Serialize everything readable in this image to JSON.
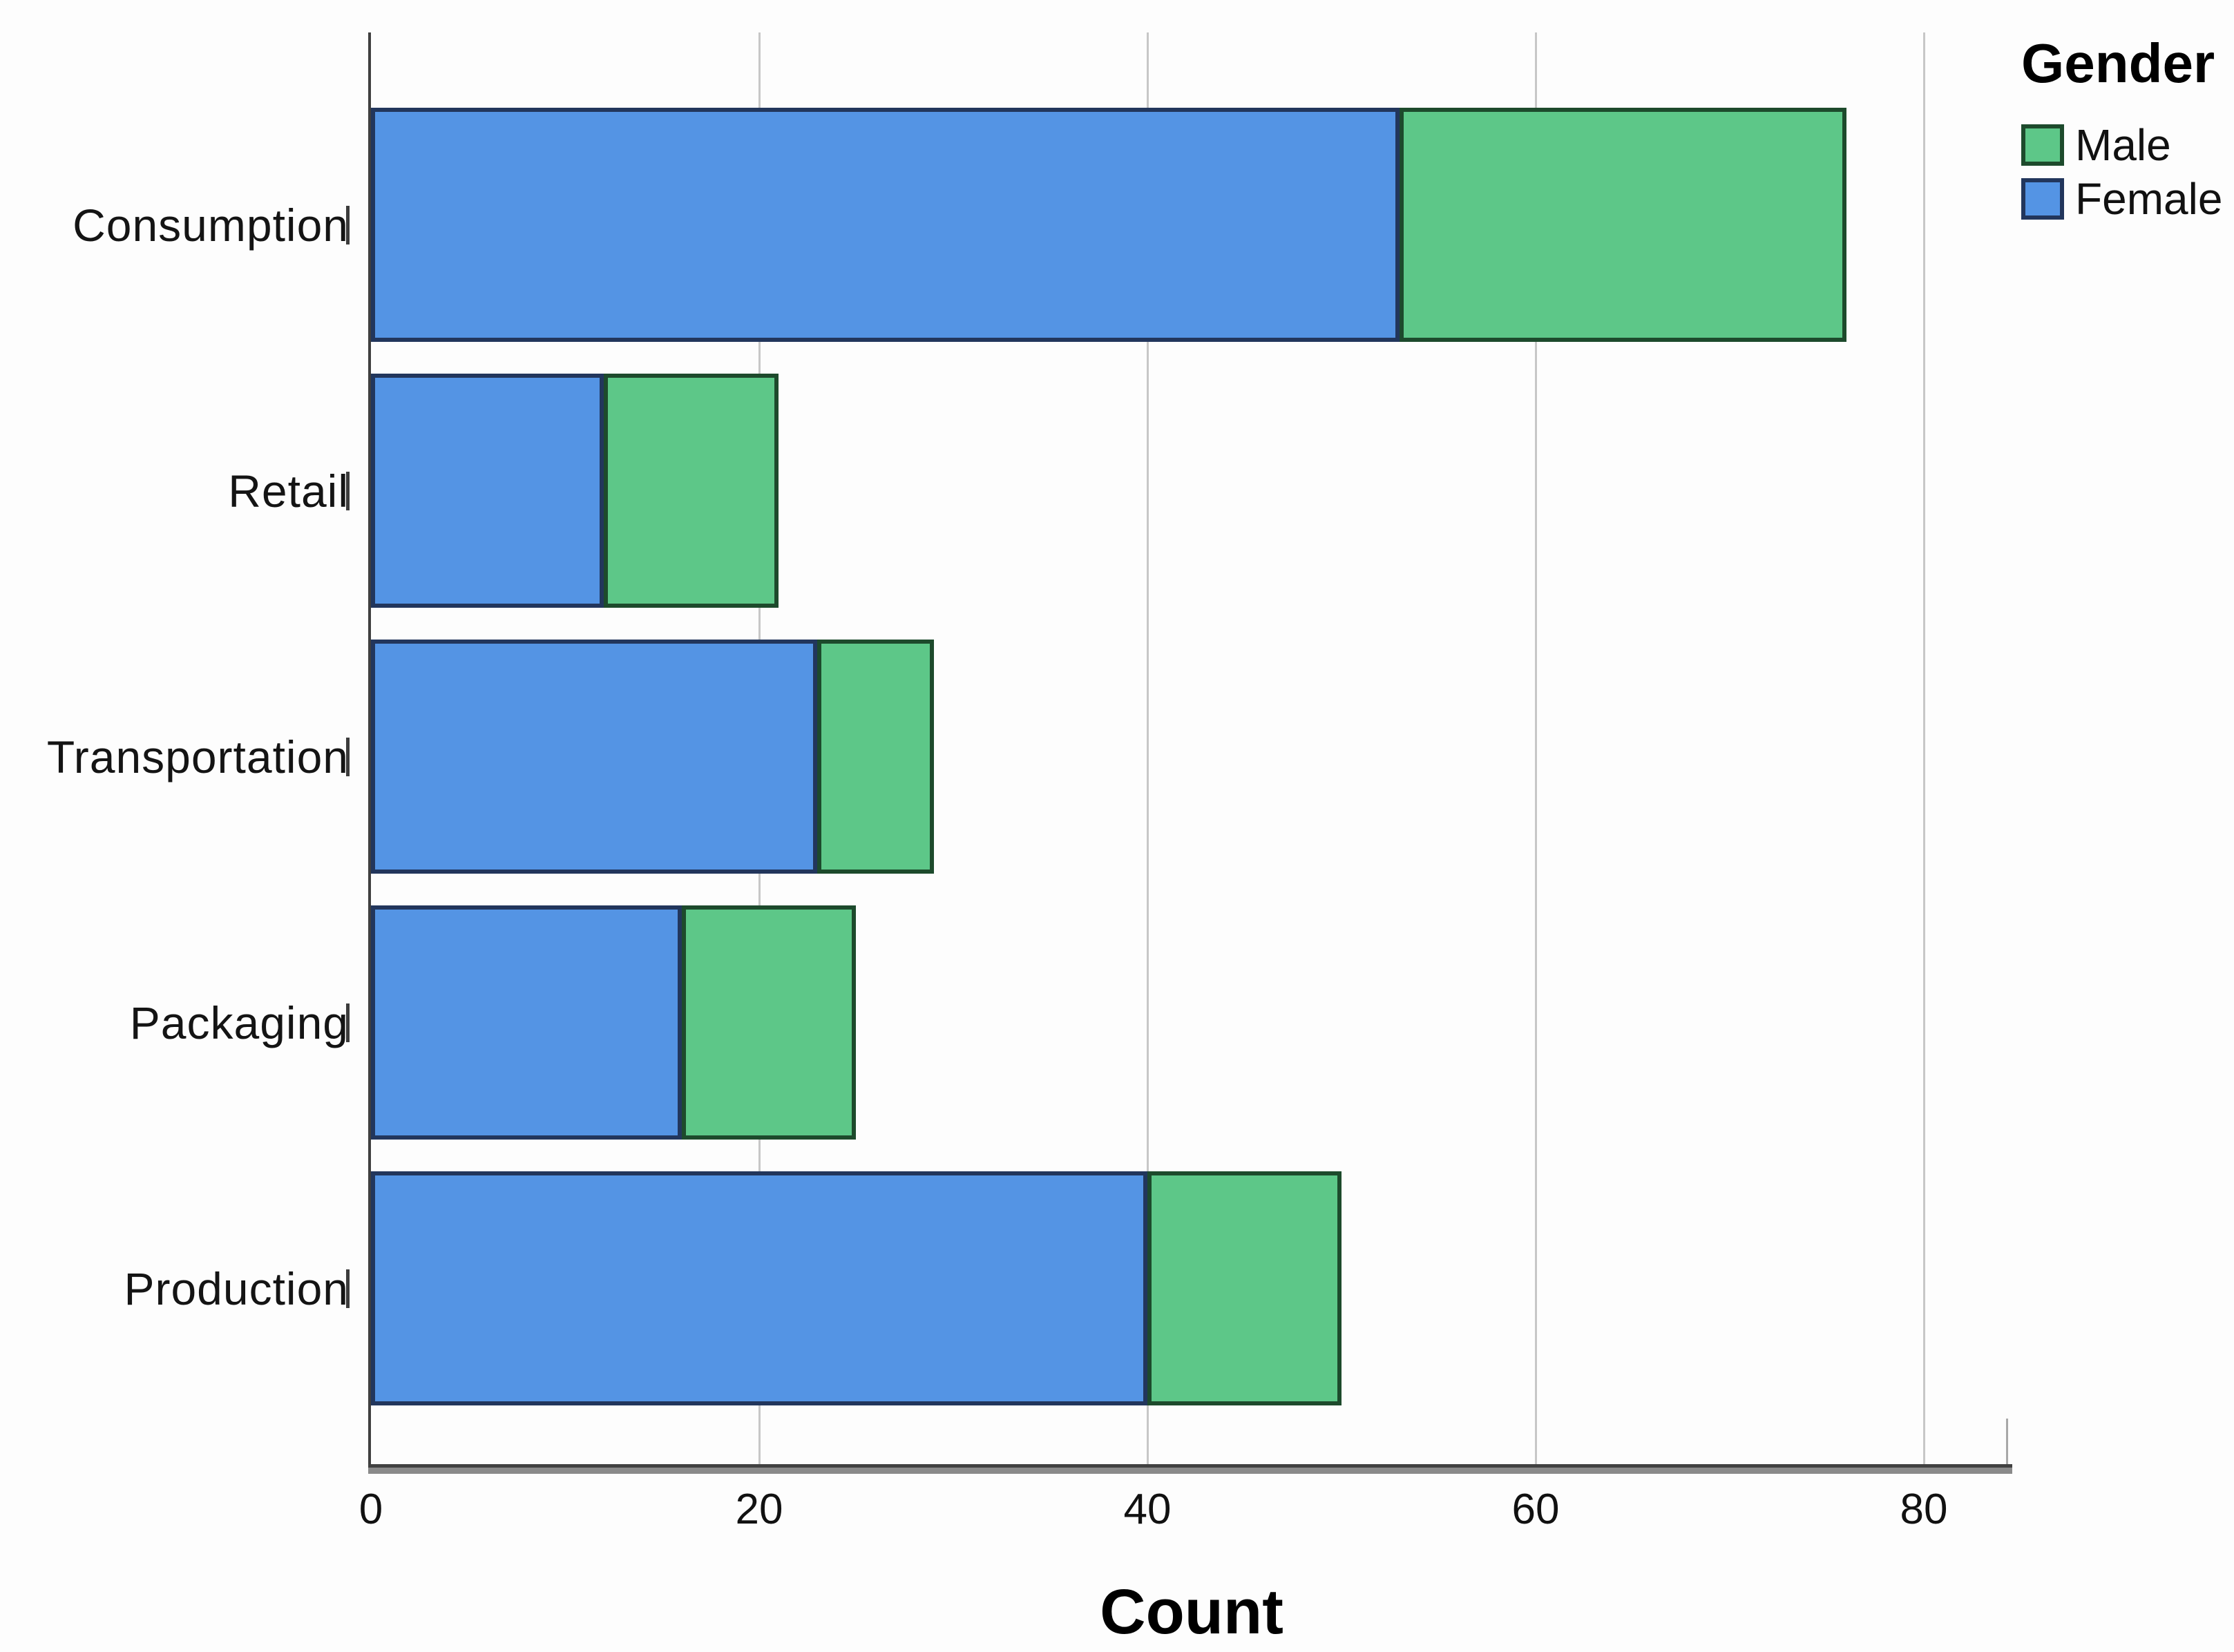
{
  "chart_data": {
    "type": "bar",
    "orientation": "horizontal",
    "stacked": true,
    "title": "",
    "xlabel": "Count",
    "ylabel": "",
    "categories": [
      "Consumption",
      "Retail",
      "Transportation",
      "Packaging",
      "Production"
    ],
    "series": [
      {
        "name": "Male",
        "color": "#5dc788",
        "border_color": "#1d4a2c",
        "values": [
          23,
          9,
          6,
          9,
          10
        ]
      },
      {
        "name": "Female",
        "color": "#5494e4",
        "border_color": "#22365c",
        "values": [
          53,
          12,
          23,
          16,
          40
        ]
      }
    ],
    "stack_order_left_to_right": [
      "Female",
      "Male"
    ],
    "totals": [
      76,
      21,
      29,
      25,
      50
    ],
    "x_ticks": [
      0,
      20,
      40,
      60,
      80
    ],
    "xlim": [
      0,
      84.5
    ],
    "grid": true,
    "legend": {
      "title": "Gender",
      "position": "top-right",
      "entries": [
        "Male",
        "Female"
      ]
    },
    "colors": {
      "male_fill": "#5dc788",
      "male_border": "#1d4a2c",
      "female_fill": "#5494e4",
      "female_border": "#22365c",
      "gridline": "#c7c7c7",
      "axis": "#414141",
      "text": "#111111"
    }
  }
}
